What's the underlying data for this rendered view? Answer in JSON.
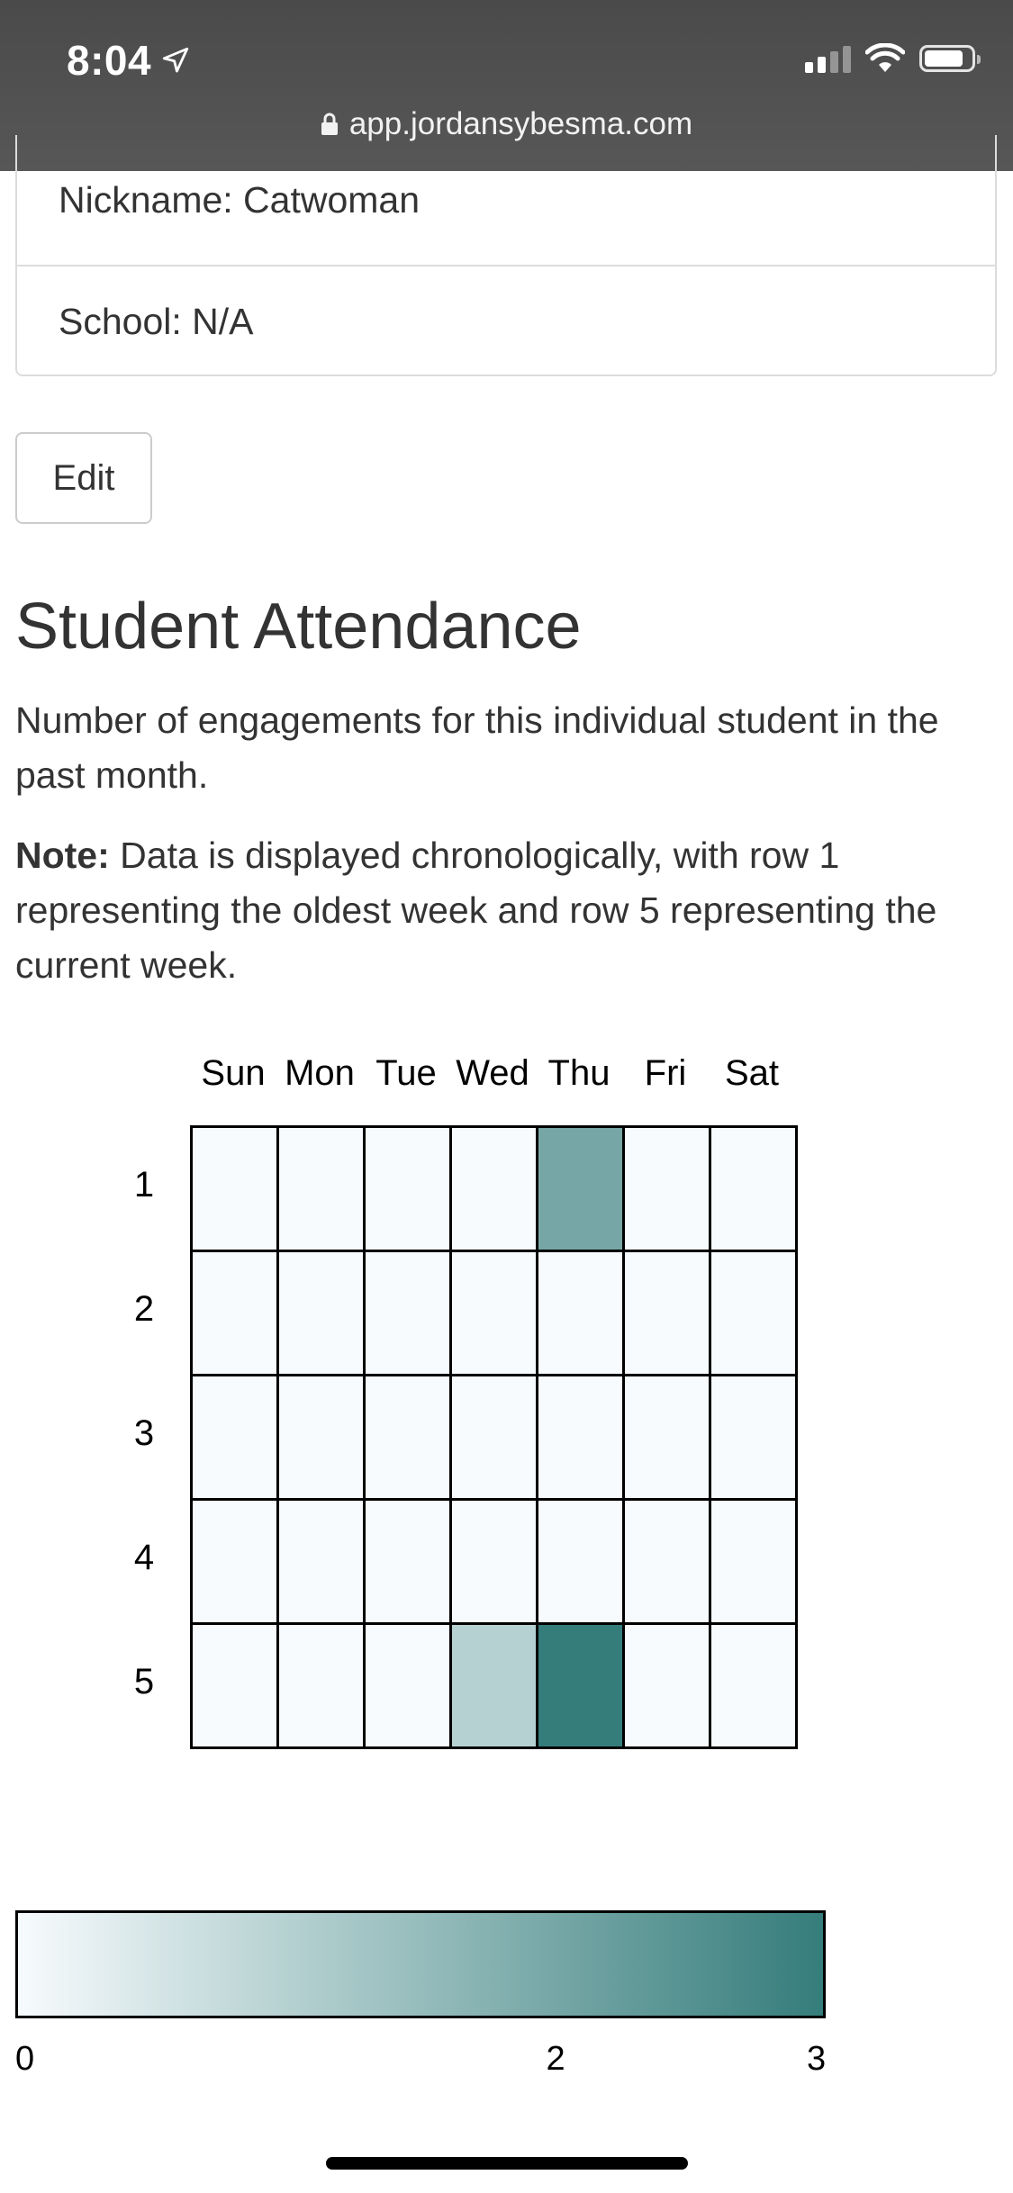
{
  "status_bar": {
    "time": "8:04",
    "url": "app.jordansybesma.com"
  },
  "profile": {
    "nickname": "Nickname: Catwoman",
    "school": "School: N/A"
  },
  "edit_button": "Edit",
  "section": {
    "title": "Student Attendance",
    "description": "Number of engagements for this individual student in the past month.",
    "note_label": "Note:",
    "note_text": " Data is displayed chronologically, with row 1 representing the oldest week and row 5 representing the current week."
  },
  "chart_data": {
    "type": "heatmap",
    "columns": [
      "Sun",
      "Mon",
      "Tue",
      "Wed",
      "Thu",
      "Fri",
      "Sat"
    ],
    "rows": [
      "1",
      "2",
      "3",
      "4",
      "5"
    ],
    "values": [
      [
        0,
        0,
        0,
        0,
        2,
        0,
        0
      ],
      [
        0,
        0,
        0,
        0,
        0,
        0,
        0
      ],
      [
        0,
        0,
        0,
        0,
        0,
        0,
        0
      ],
      [
        0,
        0,
        0,
        0,
        0,
        0,
        0
      ],
      [
        0,
        0,
        0,
        1,
        3,
        0,
        0
      ]
    ],
    "color_scale": {
      "min": 0,
      "max": 3,
      "min_color": "#f7fbfd",
      "max_color": "#357d7b",
      "tick_labels": [
        "0",
        "2",
        "3"
      ]
    }
  }
}
